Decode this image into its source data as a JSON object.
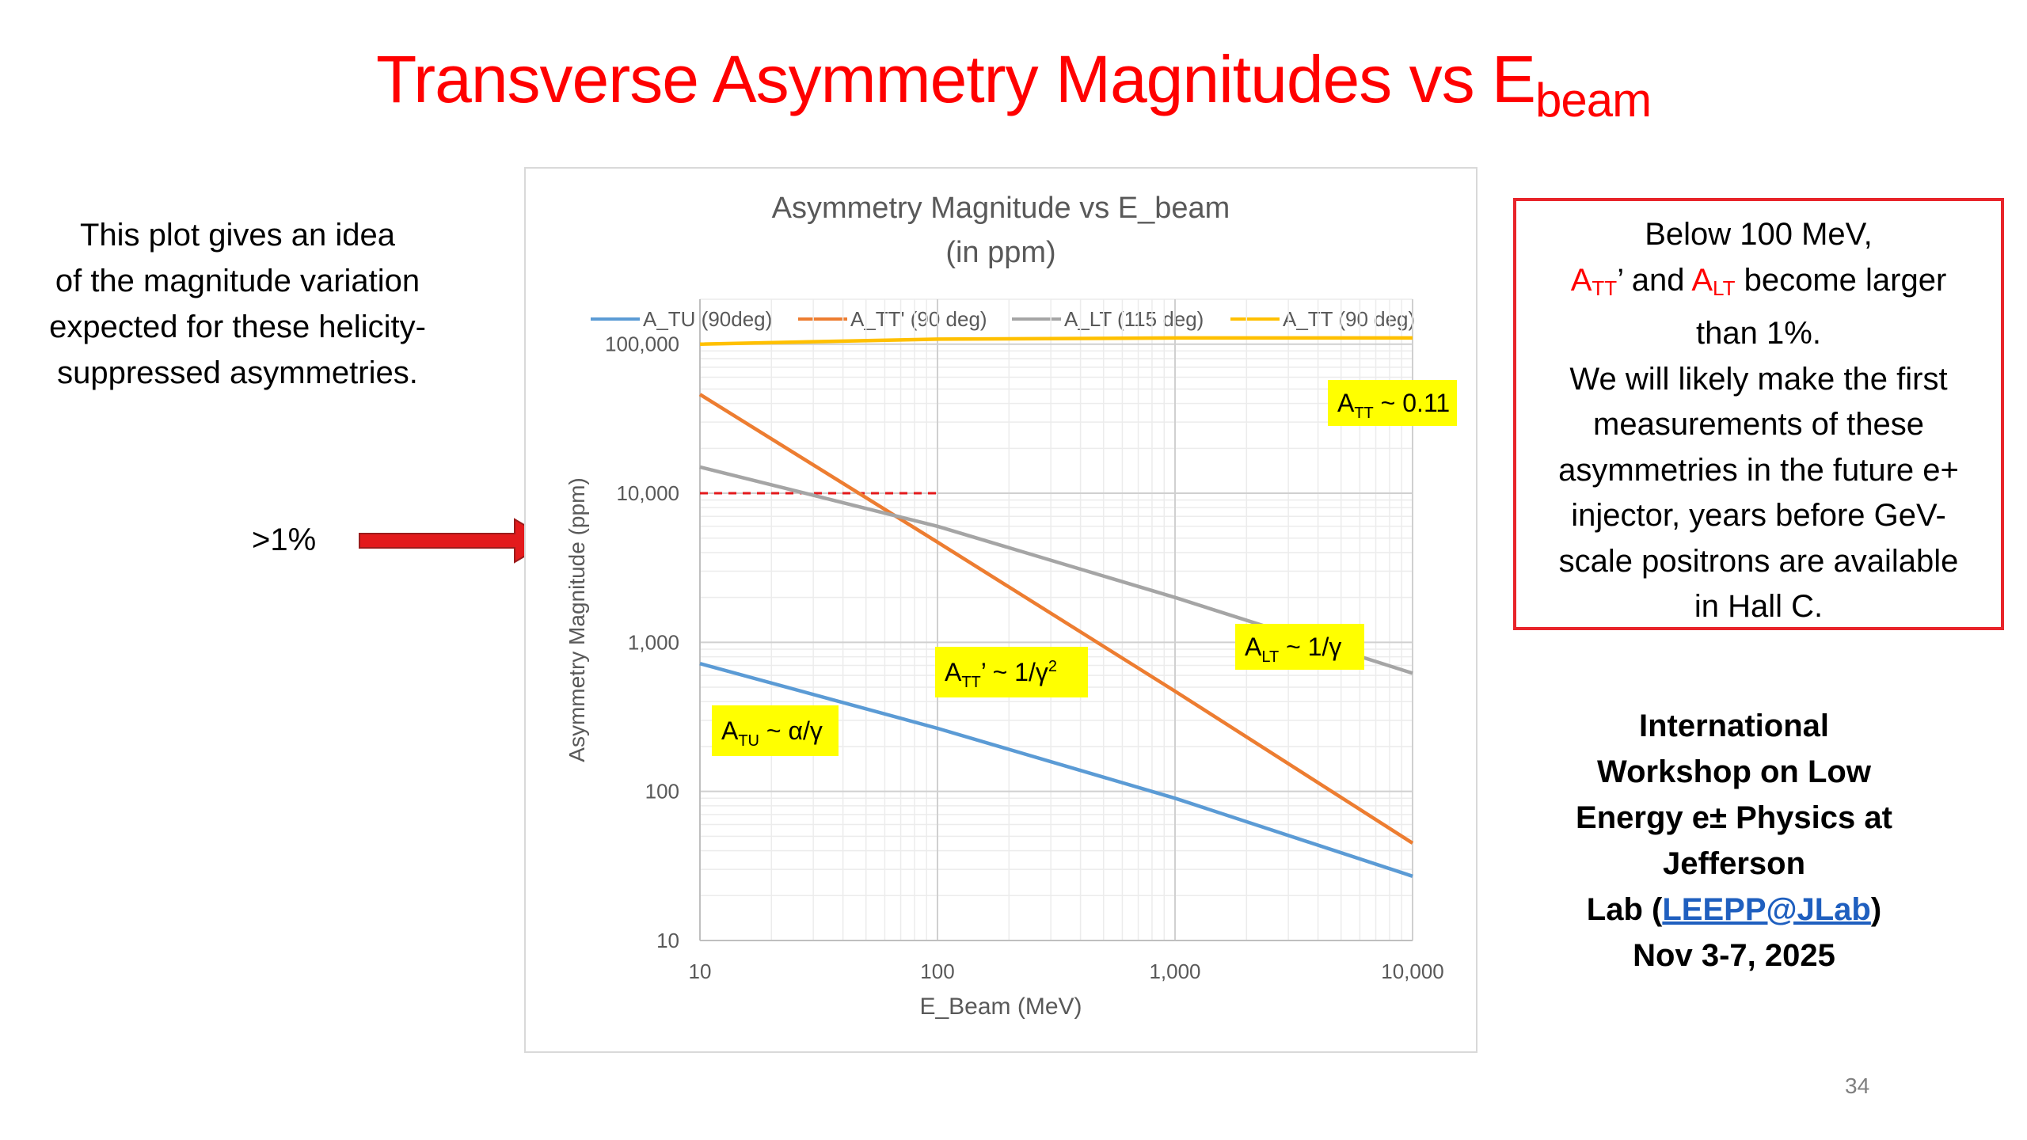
{
  "slide": {
    "title_main": "Transverse Asymmetry Magnitudes vs E",
    "title_sub": "beam",
    "left_note": [
      "This plot gives an idea",
      "of the magnitude variation",
      "expected for these helicity-",
      "suppressed asymmetries."
    ],
    "arrow_label": ">1%",
    "right_box": {
      "line1": "Below 100 MeV,",
      "line2": {
        "a1": "A",
        "a1_sub": "TT",
        "prime": "’ and ",
        "a2": "A",
        "a2_sub": "LT",
        "rest": " become larger"
      },
      "lines_rest": [
        "than 1%.",
        "We will likely make the first",
        "measurements of these",
        "asymmetries in the future e+",
        "injector, years before GeV-",
        "scale positrons are available",
        "in Hall C."
      ]
    },
    "workshop": {
      "lines": [
        "International",
        "Workshop on Low",
        "Energy e± Physics at",
        "Jefferson"
      ],
      "lab_prefix": "Lab  (",
      "link": "LEEPP@JLab",
      "lab_suffix": ")",
      "dates": "Nov 3-7, 2025"
    },
    "page_number": "34",
    "colors": {
      "title": "#ff0000",
      "box_border": "#e8242a",
      "arrow": "#e31a1c",
      "link": "#1f5fbf",
      "annotation_bg": "#ffff00"
    }
  },
  "chart_data": {
    "type": "line",
    "title": "Asymmetry Magnitude vs E_beam",
    "subtitle": "(in ppm)",
    "xlabel": "E_Beam (MeV)",
    "ylabel": "Asymmetry Magnitude (ppm)",
    "xscale": "log",
    "yscale": "log",
    "xlim": [
      10,
      10000
    ],
    "ylim": [
      10,
      200000
    ],
    "xticks": [
      10,
      100,
      1000,
      10000
    ],
    "xtick_labels": [
      "10",
      "100",
      "1,000",
      "10,000"
    ],
    "yticks": [
      10,
      100,
      1000,
      10000,
      100000
    ],
    "ytick_labels": [
      "10",
      "100",
      "1,000",
      "10,000",
      "100,000"
    ],
    "grid": true,
    "legend_position": "top",
    "series": [
      {
        "name": "A_TU (90deg)",
        "color": "#5b9bd5",
        "x": [
          10,
          100,
          1000,
          10000
        ],
        "y": [
          720,
          265,
          90,
          27
        ]
      },
      {
        "name": "A_TT' (90 deg)",
        "color": "#ed7d31",
        "x": [
          10,
          100,
          1000,
          10000
        ],
        "y": [
          46000,
          4700,
          470,
          45
        ]
      },
      {
        "name": "A_LT (115 deg)",
        "color": "#a5a5a5",
        "x": [
          10,
          100,
          1000,
          10000
        ],
        "y": [
          15000,
          6000,
          2000,
          620
        ]
      },
      {
        "name": "A_TT (90 deg)",
        "color": "#ffc000",
        "x": [
          10,
          100,
          1000,
          10000
        ],
        "y": [
          100000,
          108000,
          110000,
          110000
        ]
      }
    ],
    "reference_line": {
      "y": 10000,
      "x": [
        10,
        100
      ],
      "color": "#e31a1c",
      "style": "dashed"
    },
    "annotations": [
      {
        "base": "A",
        "sub": "TT",
        "text": " ~ 0.11",
        "sup": ""
      },
      {
        "base": "A",
        "sub": "TT",
        "text": "’ ~ 1/γ",
        "sup": "2"
      },
      {
        "base": "A",
        "sub": "LT",
        "text": " ~ 1/γ",
        "sup": ""
      },
      {
        "base": "A",
        "sub": "TU",
        "text": " ~ α/γ",
        "sup": ""
      }
    ]
  }
}
